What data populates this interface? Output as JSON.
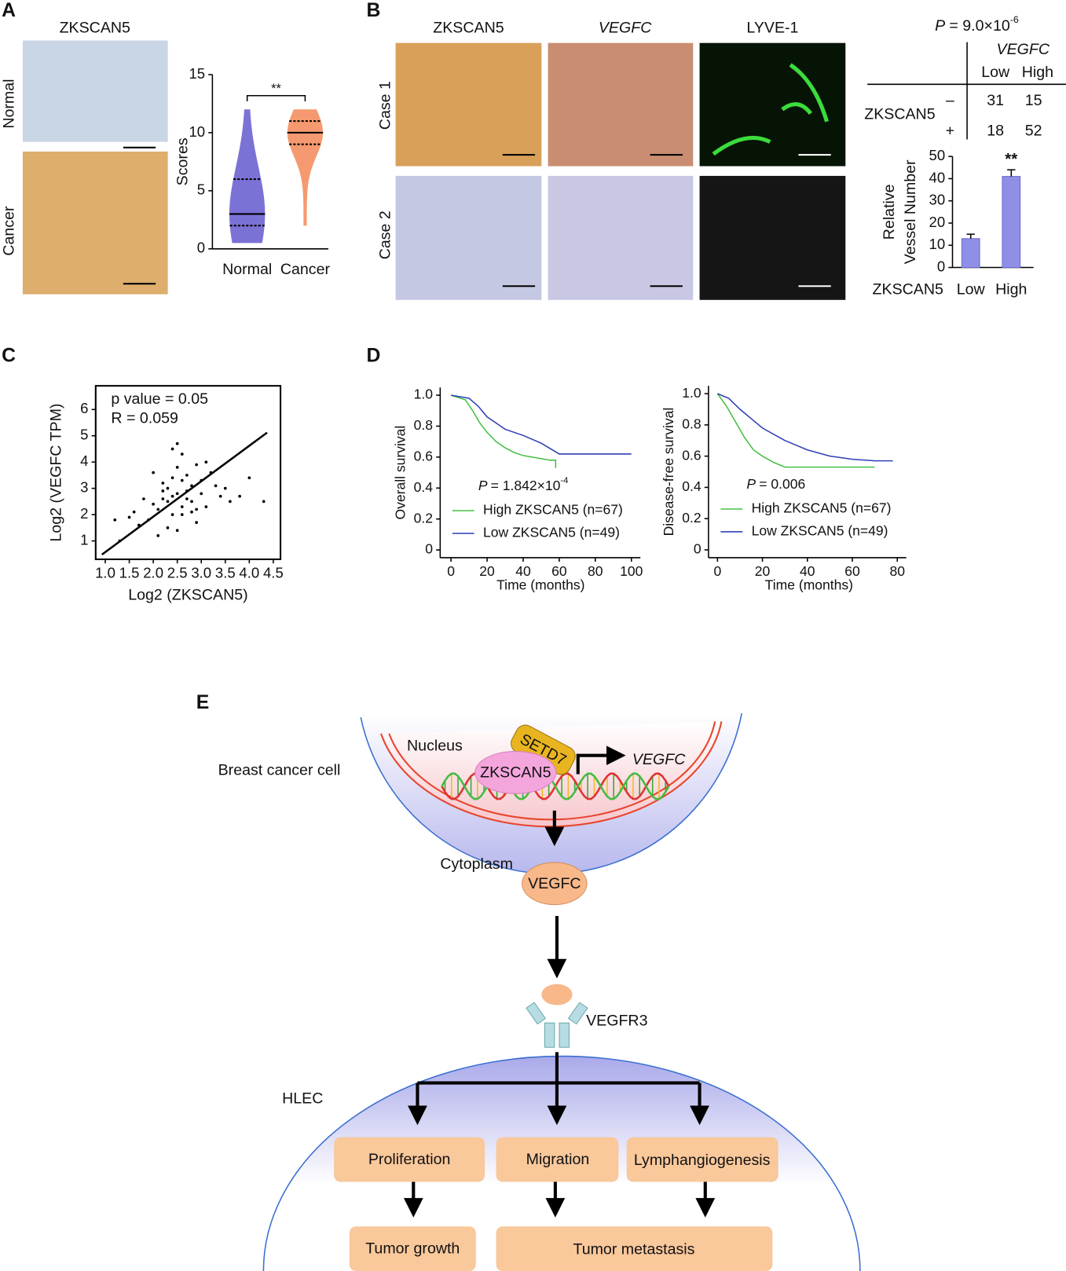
{
  "panel_labels": [
    "A",
    "B",
    "C",
    "D",
    "E"
  ],
  "panel_a": {
    "image_title": "ZKSCAN5",
    "row_labels": [
      "Normal",
      "Cancer"
    ]
  },
  "panel_b": {
    "column_titles": [
      "ZKSCAN5",
      "VEGFC",
      "LYVE-1"
    ],
    "row_labels": [
      "Case 1",
      "Case 2"
    ],
    "table": {
      "p_symbol": "P",
      "p_text": "= 9.0×10",
      "p_exp": "-6",
      "column_group": "VEGFC",
      "columns": [
        "Low",
        "High"
      ],
      "row_group": "ZKSCAN5",
      "rows": [
        {
          "label": "–",
          "values": [
            31,
            15
          ]
        },
        {
          "label": "+",
          "values": [
            18,
            52
          ]
        }
      ]
    }
  },
  "chart_data": [
    {
      "type": "violin",
      "ylabel": "Scores",
      "categories": [
        "Normal",
        "Cancer"
      ],
      "colors": [
        "#7b72d6",
        "#f59a70"
      ],
      "stats": [
        {
          "min": 0.5,
          "q1": 2,
          "median": 3,
          "q3": 6,
          "max": 12
        },
        {
          "min": 2,
          "q1": 9,
          "median": 10,
          "q3": 11,
          "max": 12
        }
      ],
      "ylim": [
        0,
        15
      ],
      "yticks": [
        0,
        5,
        10,
        15
      ],
      "annotation": "**"
    },
    {
      "type": "bar",
      "categories": [
        "Low",
        "High"
      ],
      "values": [
        13,
        41
      ],
      "errors": [
        2,
        3
      ],
      "xlabel": "ZKSCAN5",
      "ylabel": [
        "Relative",
        "Vessel Number"
      ],
      "color": "#8f8fe6",
      "ylim": [
        0,
        50
      ],
      "yticks": [
        0,
        10,
        20,
        30,
        40,
        50
      ],
      "annotation": "**"
    },
    {
      "type": "scatter",
      "text": [
        "p value = 0.05",
        "R = 0.059"
      ],
      "xlabel": "Log2 (ZKSCAN5)",
      "ylabel": "Log2 (VEGFC TPM)",
      "color": "#000000",
      "x": [
        2.5,
        2.1,
        2.8,
        3.0,
        2.3,
        2.6,
        1.9,
        3.2,
        2.4,
        2.7,
        2.2,
        3.4,
        1.7,
        2.9,
        2.5,
        2.0,
        3.1,
        2.6,
        2.3,
        2.8,
        1.5,
        3.6,
        2.4,
        2.7,
        2.1,
        3.0,
        2.5,
        2.2,
        3.3,
        1.8,
        2.6,
        2.9,
        2.4,
        3.5,
        2.0,
        2.7,
        1.3,
        4.0,
        2.5,
        2.8,
        2.3,
        3.1,
        2.6,
        1.6,
        3.8,
        2.2,
        2.9,
        2.4,
        4.3,
        1.2
      ],
      "values": [
        2.8,
        2.2,
        3.1,
        3.3,
        2.5,
        2.0,
        1.8,
        3.6,
        3.4,
        2.6,
        2.9,
        2.7,
        1.6,
        3.9,
        1.4,
        2.4,
        2.3,
        4.3,
        3.0,
        2.1,
        1.9,
        2.5,
        2.7,
        3.5,
        1.2,
        2.8,
        4.7,
        3.2,
        3.1,
        2.6,
        2.3,
        1.7,
        2.0,
        3.0,
        3.6,
        2.9,
        1.0,
        3.4,
        3.8,
        2.5,
        1.5,
        4.0,
        3.3,
        2.1,
        2.7,
        2.6,
        2.2,
        4.5,
        2.5,
        1.8
      ],
      "fit": {
        "x": [
          0.93,
          4.37
        ],
        "y": [
          0.48,
          5.12
        ]
      },
      "xlim": [
        0.8,
        4.65
      ],
      "ylim": [
        0.3,
        6.9
      ],
      "xticks": [
        {
          "value": 1,
          "label": "1.0"
        },
        1.5,
        {
          "value": 2,
          "label": "2.0"
        },
        2.5,
        {
          "value": 3,
          "label": "3.0"
        },
        3.5,
        {
          "value": 4,
          "label": "4.0"
        },
        4.5
      ],
      "yticks": [
        1,
        2,
        3,
        4,
        5,
        6
      ]
    },
    {
      "type": "line",
      "xlabel": "Time (months)",
      "ylabel": "Overall survival",
      "annotation": {
        "symbol": "P",
        "text": "= 1.842×10",
        "exp": "-4"
      },
      "series": [
        {
          "name": "High ZKSCAN5 (n=67)",
          "color": "#45c045",
          "x": [
            0,
            8,
            12,
            16,
            20,
            25,
            30,
            35,
            40,
            45,
            50,
            55,
            58,
            58
          ],
          "values": [
            1,
            0.97,
            0.9,
            0.82,
            0.76,
            0.7,
            0.66,
            0.63,
            0.61,
            0.6,
            0.59,
            0.58,
            0.58,
            0.53
          ]
        },
        {
          "name": "Low ZKSCAN5 (n=49)",
          "color": "#2f3fb5",
          "x": [
            0,
            10,
            15,
            20,
            30,
            40,
            50,
            60,
            70,
            80,
            90,
            100
          ],
          "values": [
            1,
            0.98,
            0.93,
            0.86,
            0.78,
            0.74,
            0.69,
            0.62,
            0.62,
            0.62,
            0.62,
            0.62
          ]
        }
      ],
      "xlim": [
        -6,
        105
      ],
      "ylim": [
        -0.05,
        1.05
      ],
      "xticks": [
        0,
        20,
        40,
        60,
        80,
        100
      ],
      "yticks": [
        0,
        0.2,
        0.4,
        0.6,
        0.8,
        {
          "value": 1,
          "label": "1.0"
        }
      ]
    },
    {
      "type": "line",
      "xlabel": "Time (months)",
      "ylabel": "Disease-free survival",
      "annotation": {
        "symbol": "P",
        "text": "= 0.006"
      },
      "series": [
        {
          "name": "High ZKSCAN5 (n=67)",
          "color": "#45c045",
          "x": [
            0,
            4,
            8,
            12,
            16,
            20,
            25,
            30,
            40,
            50,
            60,
            70
          ],
          "values": [
            1,
            0.92,
            0.82,
            0.72,
            0.64,
            0.6,
            0.56,
            0.53,
            0.53,
            0.53,
            0.53,
            0.53
          ]
        },
        {
          "name": "Low ZKSCAN5 (n=49)",
          "color": "#2f3fb5",
          "x": [
            0,
            5,
            10,
            15,
            20,
            30,
            40,
            50,
            60,
            70,
            78
          ],
          "values": [
            1,
            0.97,
            0.9,
            0.84,
            0.78,
            0.7,
            0.64,
            0.6,
            0.58,
            0.57,
            0.57
          ]
        }
      ],
      "xlim": [
        -4,
        84
      ],
      "ylim": [
        -0.05,
        1.05
      ],
      "xticks": [
        0,
        20,
        40,
        60,
        80
      ],
      "yticks": [
        0,
        0.2,
        0.4,
        0.6,
        0.8,
        {
          "value": 1,
          "label": "1.0"
        }
      ]
    }
  ],
  "diagram": {
    "cell": "Breast cancer cell",
    "nucleus": "Nucleus",
    "setd7": "SETD7",
    "zkscan5": "ZKSCAN5",
    "gene": "VEGFC",
    "cytoplasm": "Cytoplasm",
    "protein": "VEGFC",
    "receptor": "VEGFR3",
    "hlec": "HLEC",
    "effects": [
      "Proliferation",
      "Migration",
      "Lymphangiogenesis"
    ],
    "outcomes": [
      "Tumor growth",
      "Tumor metastasis"
    ]
  }
}
